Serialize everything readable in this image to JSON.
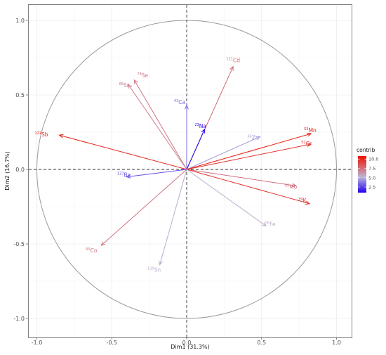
{
  "chart_data": {
    "type": "pca-variables",
    "xlabel": "Dim1 (31.3%)",
    "ylabel": "Dim2 (16.7%)",
    "xlim": [
      -1.0,
      1.0
    ],
    "ylim": [
      -1.0,
      1.0
    ],
    "xticks": [
      "-1.0",
      "-0.5",
      "0.0",
      "0.5",
      "1.0"
    ],
    "yticks": [
      "-1.0",
      "-0.5",
      "0.0",
      "0.5",
      "1.0"
    ],
    "grid": true,
    "correlation_circle": true,
    "legend": {
      "title": "contrib",
      "position": "right",
      "ticks": [
        "10.0",
        "7.5",
        "5.0",
        "2.5"
      ],
      "tick_values": [
        10.0,
        7.5,
        5.0,
        2.5
      ],
      "range": [
        1.0,
        10.8
      ],
      "colors": {
        "low": "#2200ee",
        "mid": "#bbb6d8",
        "high": "#ee1100"
      }
    },
    "variables": [
      {
        "mass": "121",
        "symbol": "Sb",
        "x": -0.85,
        "y": 0.23,
        "contrib": 10.2
      },
      {
        "mass": "111",
        "symbol": "Cd",
        "x": 0.31,
        "y": 0.69,
        "contrib": 7.8
      },
      {
        "mass": "78",
        "symbol": "Se",
        "x": -0.35,
        "y": 0.6,
        "contrib": 7.3
      },
      {
        "mass": "88",
        "symbol": "Sr",
        "x": -0.39,
        "y": 0.57,
        "contrib": 7.0
      },
      {
        "mass": "43",
        "symbol": "Ca",
        "x": 0.0,
        "y": 0.43,
        "contrib": 3.4
      },
      {
        "mass": "23",
        "symbol": "Na",
        "x": 0.12,
        "y": 0.27,
        "contrib": 1.2
      },
      {
        "mass": "66",
        "symbol": "Zn",
        "x": 0.49,
        "y": 0.22,
        "contrib": 4.6
      },
      {
        "mass": "55",
        "symbol": "Mn",
        "x": 0.83,
        "y": 0.24,
        "contrib": 10.3
      },
      {
        "mass": "52",
        "symbol": "Cr",
        "x": 0.83,
        "y": 0.17,
        "contrib": 9.6
      },
      {
        "mass": "137",
        "symbol": "Ba",
        "x": -0.4,
        "y": -0.05,
        "contrib": 2.8
      },
      {
        "mass": "95",
        "symbol": "Mo",
        "x": 0.73,
        "y": -0.11,
        "contrib": 7.5
      },
      {
        "mass": "39",
        "symbol": "K",
        "x": 0.82,
        "y": -0.23,
        "contrib": 9.5
      },
      {
        "mass": "56",
        "symbol": "Fe",
        "x": 0.53,
        "y": -0.38,
        "contrib": 5.4
      },
      {
        "mass": "60",
        "symbol": "Co",
        "x": -0.57,
        "y": -0.51,
        "contrib": 7.4
      },
      {
        "mass": "120",
        "symbol": "Sn",
        "x": -0.18,
        "y": -0.64,
        "contrib": 5.5
      }
    ]
  }
}
